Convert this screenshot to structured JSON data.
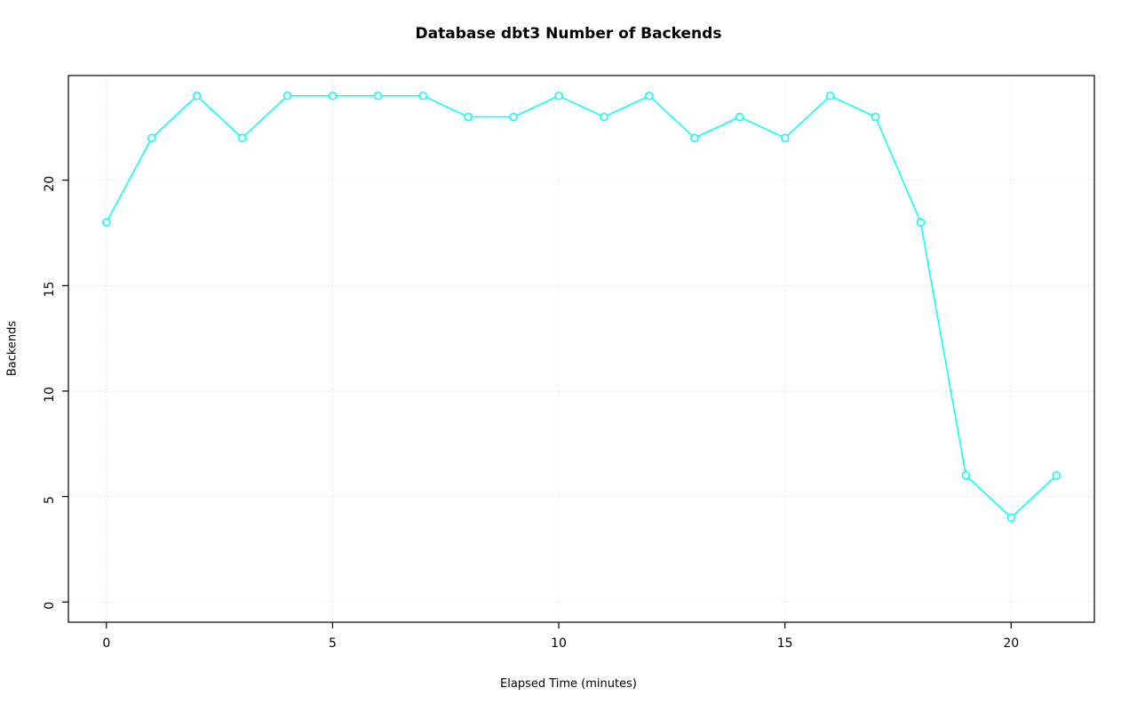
{
  "chart_data": {
    "type": "line",
    "title": "Database dbt3 Number of Backends",
    "xlabel": "Elapsed Time (minutes)",
    "ylabel": "Backends",
    "x": [
      0,
      1,
      2,
      3,
      4,
      5,
      6,
      7,
      8,
      9,
      10,
      11,
      12,
      13,
      14,
      15,
      16,
      17,
      18,
      19,
      20,
      21
    ],
    "y": [
      18,
      22,
      24,
      22,
      24,
      24,
      24,
      24,
      23,
      23,
      24,
      23,
      24,
      22,
      23,
      22,
      24,
      23,
      18,
      6,
      4,
      6
    ],
    "x_ticks": [
      0,
      5,
      10,
      15,
      20
    ],
    "y_ticks": [
      0,
      5,
      10,
      15,
      20
    ],
    "xlim": [
      -0.84,
      21.84
    ],
    "ylim": [
      -0.96,
      24.96
    ],
    "line_color": "#00FFFF",
    "grid_color": "#D3D3D3",
    "grid": true,
    "legend": "none",
    "marker": "open-circle"
  }
}
